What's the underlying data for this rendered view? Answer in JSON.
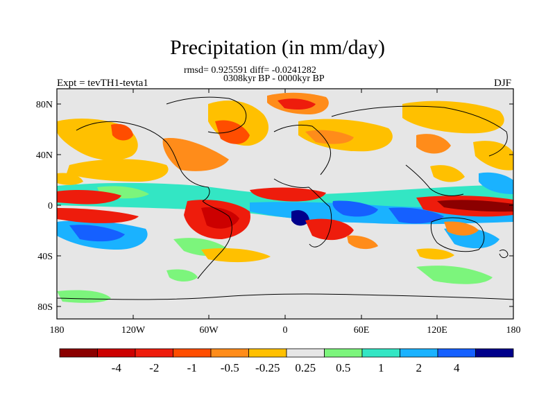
{
  "header": {
    "title": "Precipitation (in mm/day)",
    "stats": "rmsd= 0.925591 diff= -0.0241282",
    "period": "0308kyr BP - 0000kyr BP",
    "experiment": "Expt = tevTH1-tevta1",
    "season": "DJF"
  },
  "axes": {
    "lat_ticks": [
      "80N",
      "40N",
      "0",
      "40S",
      "80S"
    ],
    "lon_ticks": [
      "180",
      "120W",
      "60W",
      "0",
      "60E",
      "120E",
      "180"
    ]
  },
  "colorbar": {
    "colors": [
      "#8b0000",
      "#cc0000",
      "#ee1c0c",
      "#ff4d00",
      "#ff8c1a",
      "#ffc000",
      "#e6e6e6",
      "#7cf57c",
      "#33e6c4",
      "#1ab2ff",
      "#1560ff",
      "#00008b"
    ],
    "labels": [
      "-4",
      "-2",
      "-1",
      "-0.5",
      "-0.25",
      "0.25",
      "0.5",
      "1",
      "2",
      "4"
    ]
  },
  "colors": {
    "background": "#e6e6e6",
    "coastline": "#000000"
  }
}
